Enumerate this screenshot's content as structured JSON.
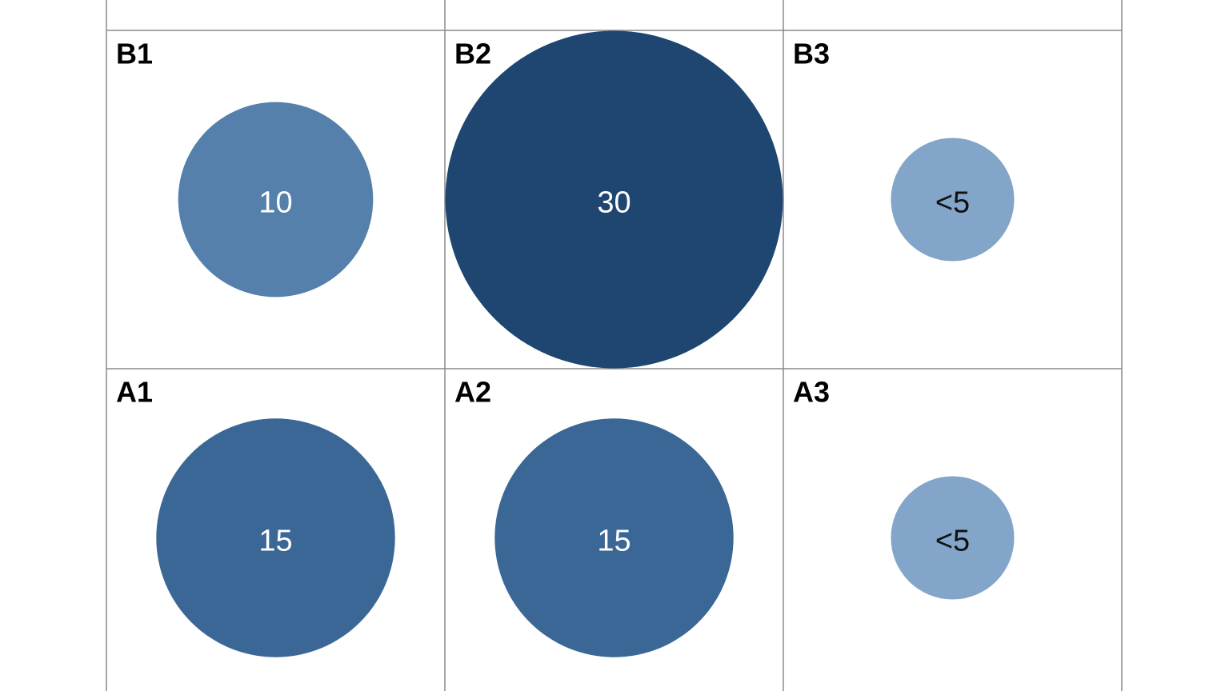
{
  "chart_data": {
    "type": "bubble-grid",
    "categories": [
      "B1",
      "B2",
      "B3",
      "A1",
      "A2",
      "A3"
    ],
    "values": [
      10,
      30,
      4,
      15,
      15,
      4
    ],
    "value_labels": [
      "10",
      "30",
      "<5",
      "15",
      "15",
      "<5"
    ],
    "colors": [
      "#5480ab",
      "#1f4670",
      "#82a5c9",
      "#3a6795",
      "#3a6795",
      "#82a5c9"
    ],
    "columns": 3
  }
}
